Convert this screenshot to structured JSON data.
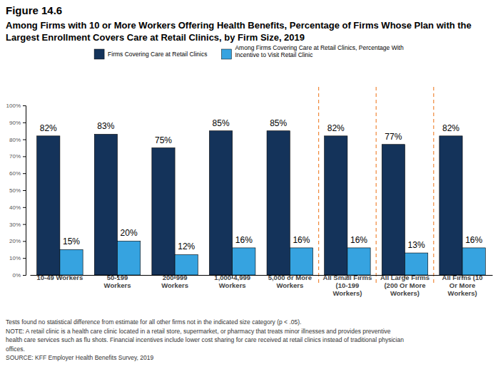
{
  "chart_data": {
    "type": "bar",
    "title": "Figure 14.6",
    "subtitle": "Among Firms with 10 or More Workers Offering Health Benefits, Percentage of Firms Whose Plan with the Largest Enrollment Covers Care at Retail Clinics, by Firm Size, 2019",
    "categories": [
      "10-49 Workers",
      "50-199 Workers",
      "200-999 Workers",
      "1,000-4,999 Workers",
      "5,000 or More Workers",
      "All Small Firms (10-199 Workers)",
      "All Large Firms (200 Or More Workers)",
      "All Firms (10 Or More Workers)"
    ],
    "series": [
      {
        "name": "Firms Covering Care at Retail Clinics",
        "color": "#14335a",
        "values": [
          82,
          83,
          75,
          85,
          85,
          82,
          77,
          82
        ],
        "value_labels": [
          "82%",
          "83%",
          "75%",
          "85%",
          "85%",
          "82%",
          "77%",
          "82%"
        ]
      },
      {
        "name": "Among Firms Covering Care at Retail Clinics, Percentage With Incentive to Visit Retail Clinic",
        "color": "#36a3e0",
        "values": [
          15,
          20,
          12,
          16,
          16,
          16,
          13,
          16
        ],
        "value_labels": [
          "15%",
          "20%",
          "12%",
          "16%",
          "16%",
          "16%",
          "13%",
          "16%"
        ]
      }
    ],
    "ylim": [
      0,
      100
    ],
    "yticks": [
      {
        "value": 0,
        "label": "0%"
      },
      {
        "value": 10,
        "label": "10%"
      },
      {
        "value": 20,
        "label": "20%"
      },
      {
        "value": 30,
        "label": "30%"
      },
      {
        "value": 40,
        "label": "40%"
      },
      {
        "value": 50,
        "label": "50%"
      },
      {
        "value": 60,
        "label": "60%"
      },
      {
        "value": 70,
        "label": "70%"
      },
      {
        "value": 80,
        "label": "80%"
      },
      {
        "value": 90,
        "label": "90%"
      },
      {
        "value": 100,
        "label": "100%"
      }
    ],
    "grid": false,
    "legend": "top",
    "data_labels": true,
    "annotations": [
      "Tests found no statistical difference from estimate for all other firms not in the indicated size category (p < .05).",
      "NOTE: A retail clinic is a health care clinic located in a retail store, supermarket, or pharmacy that treats minor illnesses and provides preventive health care services such as flu shots. Financial incentives include lower cost sharing for care received at retail clinics instead of traditional physician offices.",
      "SOURCE: KFF Employer Health Benefits Survey, 2019"
    ]
  }
}
